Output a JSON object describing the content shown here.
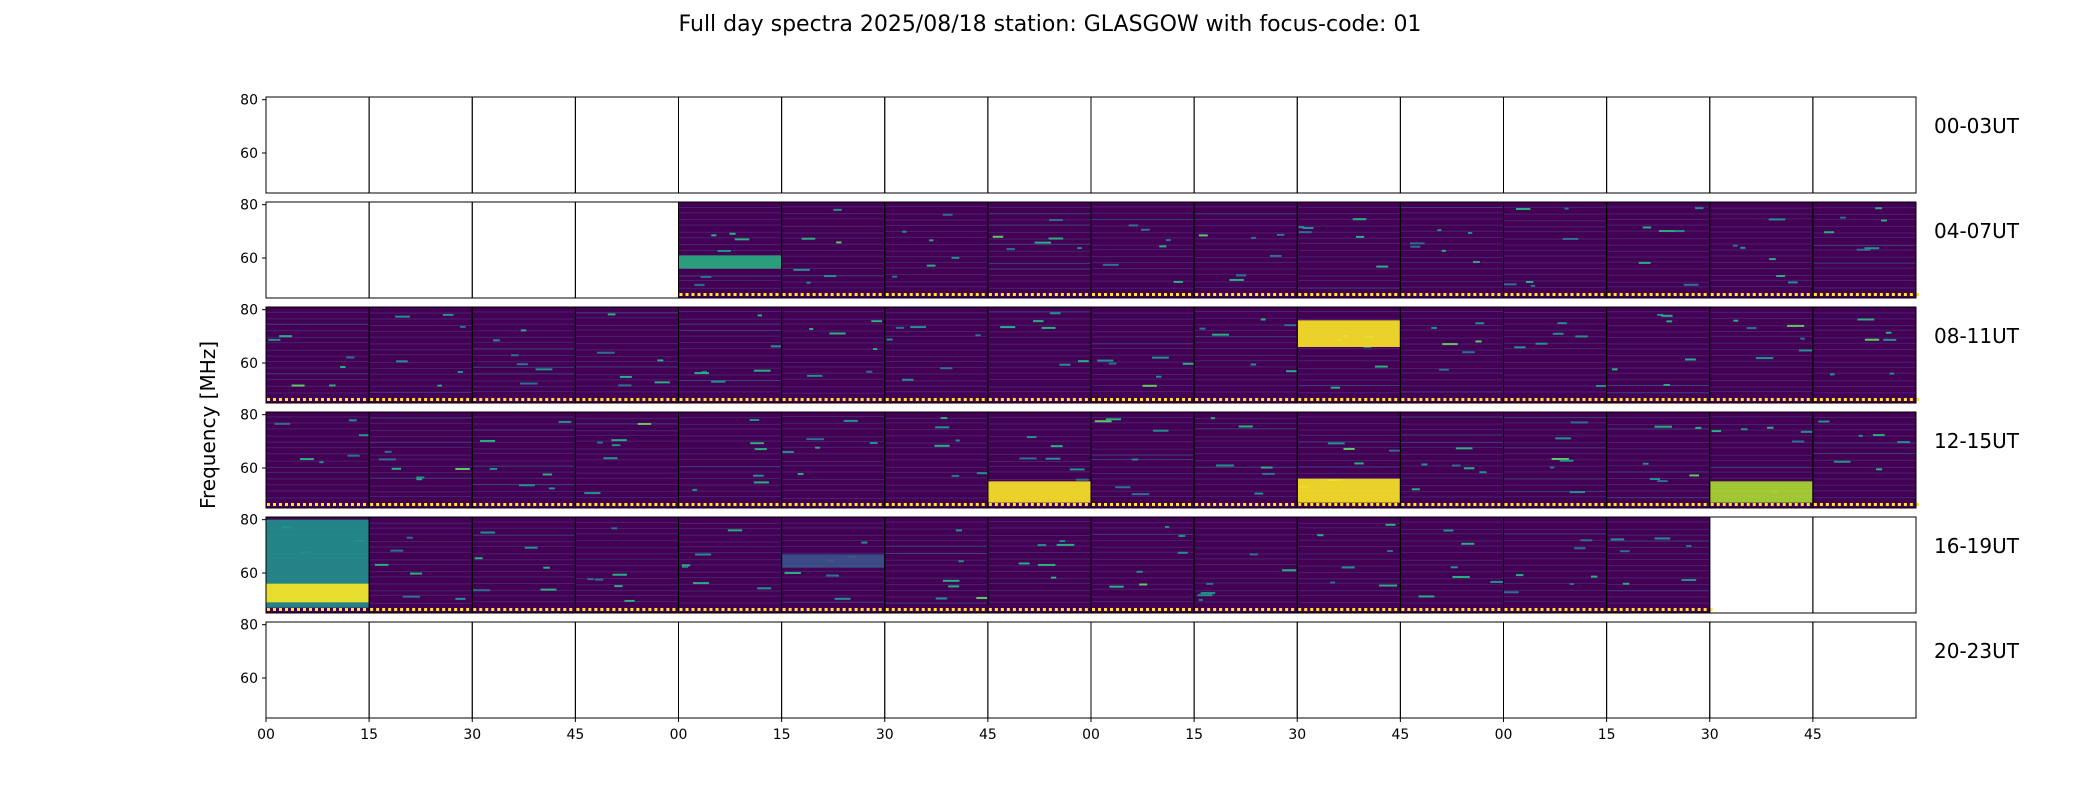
{
  "title": "Full day spectra 2025/08/18 station: GLASGOW with focus-code: 01",
  "ylabel": "Frequency [MHz]",
  "colormap": [
    "#440154",
    "#472c7a",
    "#3b528b",
    "#2c728e",
    "#21918c",
    "#28ae80",
    "#5ec962",
    "#addc30",
    "#fde725"
  ],
  "chart_data": {
    "type": "heatmap",
    "title": "Full day spectra 2025/08/18 station: GLASGOW with focus-code: 01",
    "ylabel": "Frequency [MHz]",
    "y_ticks": [
      "80",
      "60"
    ],
    "ylim": [
      45,
      81
    ],
    "x_tick_labels": [
      "00",
      "15",
      "30",
      "45",
      "00",
      "15",
      "30",
      "45",
      "00",
      "15",
      "30",
      "45",
      "00",
      "15",
      "30",
      "45"
    ],
    "columns_per_row": 16,
    "panel_minutes": 15,
    "grid": false,
    "rows": [
      {
        "label": "00-03UT",
        "panels": [
          "empty",
          "empty",
          "empty",
          "empty",
          "empty",
          "empty",
          "empty",
          "empty",
          "empty",
          "empty",
          "empty",
          "empty",
          "empty",
          "empty",
          "empty",
          "empty"
        ]
      },
      {
        "label": "04-07UT",
        "panels": [
          "empty",
          "empty",
          "empty",
          "empty",
          "data",
          "data",
          "data",
          "data",
          "data",
          "data",
          "data",
          "data",
          "data",
          "data",
          "data",
          "data"
        ]
      },
      {
        "label": "08-11UT",
        "panels": [
          "data",
          "data",
          "data",
          "data",
          "data",
          "data",
          "data",
          "data",
          "data",
          "data",
          "data",
          "data",
          "data",
          "data",
          "data",
          "data"
        ]
      },
      {
        "label": "12-15UT",
        "panels": [
          "data",
          "data",
          "data",
          "data",
          "data",
          "data",
          "data",
          "data",
          "data",
          "data",
          "data",
          "data",
          "data",
          "data",
          "data",
          "data"
        ]
      },
      {
        "label": "16-19UT",
        "panels": [
          "data",
          "data",
          "data",
          "data",
          "data",
          "data",
          "data",
          "data",
          "data",
          "data",
          "data",
          "data",
          "data",
          "data",
          "empty",
          "empty"
        ]
      },
      {
        "label": "20-23UT",
        "panels": [
          "empty",
          "empty",
          "empty",
          "empty",
          "empty",
          "empty",
          "empty",
          "empty",
          "empty",
          "empty",
          "empty",
          "empty",
          "empty",
          "empty",
          "empty",
          "empty"
        ]
      }
    ],
    "bright_features": [
      {
        "row": 1,
        "col": 4,
        "fmin": 56,
        "fmax": 61,
        "level": 0.6
      },
      {
        "row": 2,
        "col": 10,
        "fmin": 66,
        "fmax": 76,
        "level": 1.0
      },
      {
        "row": 3,
        "col": 7,
        "fmin": 47,
        "fmax": 55,
        "level": 1.0
      },
      {
        "row": 3,
        "col": 10,
        "fmin": 47,
        "fmax": 56,
        "level": 0.95
      },
      {
        "row": 3,
        "col": 14,
        "fmin": 47,
        "fmax": 55,
        "level": 0.9
      },
      {
        "row": 4,
        "col": 0,
        "fmin": 47,
        "fmax": 80,
        "level": 0.55
      },
      {
        "row": 4,
        "col": 0,
        "fmin": 49,
        "fmax": 56,
        "level": 0.95
      },
      {
        "row": 4,
        "col": 5,
        "fmin": 62,
        "fmax": 67,
        "level": 0.3
      }
    ]
  }
}
